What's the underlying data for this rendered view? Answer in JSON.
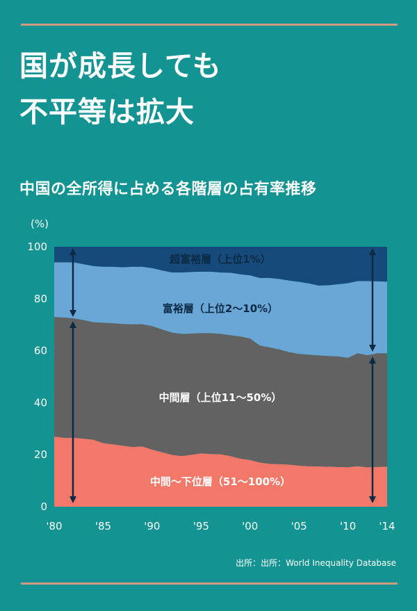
{
  "header": {
    "headline_line1": "国が成長しても",
    "headline_line2": "不平等は拡大",
    "subtitle": "中国の全所得に占める各階層の占有率推移",
    "source": "出所：出所：World Inequality Database"
  },
  "chart_data": {
    "type": "area",
    "stacked": true,
    "title": "中国の全所得に占める各階層の占有率推移",
    "ylabel": "(%)",
    "ylim": [
      0,
      100
    ],
    "xlim": [
      1980,
      2014
    ],
    "yticks": [
      "0",
      "20",
      "40",
      "60",
      "80",
      "100"
    ],
    "xticks": [
      {
        "year": 1980,
        "label": "'80"
      },
      {
        "year": 1985,
        "label": "'85"
      },
      {
        "year": 1990,
        "label": "'90"
      },
      {
        "year": 1995,
        "label": "'95"
      },
      {
        "year": 2000,
        "label": "'00"
      },
      {
        "year": 2005,
        "label": "'05"
      },
      {
        "year": 2010,
        "label": "'10"
      },
      {
        "year": 2014,
        "label": "'14"
      }
    ],
    "x": [
      1980,
      1981,
      1982,
      1983,
      1984,
      1985,
      1986,
      1987,
      1988,
      1989,
      1990,
      1991,
      1992,
      1993,
      1994,
      1995,
      1996,
      1997,
      1998,
      1999,
      2000,
      2001,
      2002,
      2003,
      2004,
      2005,
      2006,
      2007,
      2008,
      2009,
      2010,
      2011,
      2012,
      2013,
      2014
    ],
    "series": [
      {
        "name": "中間〜下位層（51〜100%）",
        "color": "#f2786a",
        "values": [
          27,
          26.5,
          26.5,
          26.2,
          25.8,
          24.5,
          24,
          23.5,
          23,
          23.2,
          22,
          21,
          20,
          19.5,
          20,
          20.5,
          20.3,
          20.2,
          19.5,
          18.5,
          18,
          17,
          16.5,
          16.4,
          16.2,
          15.8,
          15.6,
          15.5,
          15.4,
          15.3,
          15.2,
          15.6,
          15.2,
          15.3,
          15.4
        ]
      },
      {
        "name": "中間層（上位11〜50%）",
        "color": "#626262",
        "values": [
          46,
          46.3,
          46,
          45.6,
          45.2,
          46.3,
          46.6,
          46.8,
          47.2,
          47,
          47.5,
          47.2,
          47,
          47,
          46.6,
          46.3,
          46.5,
          46.3,
          46.5,
          47,
          46.7,
          45,
          44.8,
          44.1,
          43.3,
          43,
          42.9,
          42.7,
          42.6,
          42.5,
          42.1,
          43.4,
          43.1,
          43.7,
          43.6
        ]
      },
      {
        "name": "富裕層（上位2〜10%）",
        "color": "#6aa7d6",
        "values": [
          21,
          21.2,
          21.5,
          21.5,
          21.6,
          21.5,
          21.7,
          21.8,
          22.1,
          22.1,
          22.3,
          22.7,
          23.1,
          23.6,
          23.7,
          23.6,
          23.6,
          23.6,
          24,
          23.9,
          24.3,
          26,
          26.7,
          27.1,
          27.5,
          27.7,
          27.4,
          26.9,
          27.2,
          27.8,
          28.7,
          27.8,
          28.5,
          27.7,
          27.6
        ]
      },
      {
        "name": "超富裕層（上位1%）",
        "color": "#154a7a",
        "values": [
          6,
          6,
          6,
          6.7,
          7.4,
          7.7,
          7.7,
          7.9,
          7.7,
          7.7,
          8.2,
          9.1,
          9.9,
          9.9,
          9.7,
          9.6,
          9.6,
          9.9,
          10,
          10.6,
          11,
          12,
          12,
          12.4,
          13,
          13.5,
          14.1,
          14.9,
          14.8,
          14.4,
          14,
          13.2,
          13.2,
          13.3,
          13.4
        ]
      }
    ],
    "labels": {
      "top1": "超富裕層（上位1%）",
      "top2_10": "富裕層（上位2〜10%）",
      "middle": "中間層（上位11〜50%）",
      "lower": "中間〜下位層（51〜100%）"
    },
    "colors": {
      "label_dark": "#0d2a44",
      "label_light": "#ffffff",
      "arrow": "#0d2a44"
    }
  }
}
